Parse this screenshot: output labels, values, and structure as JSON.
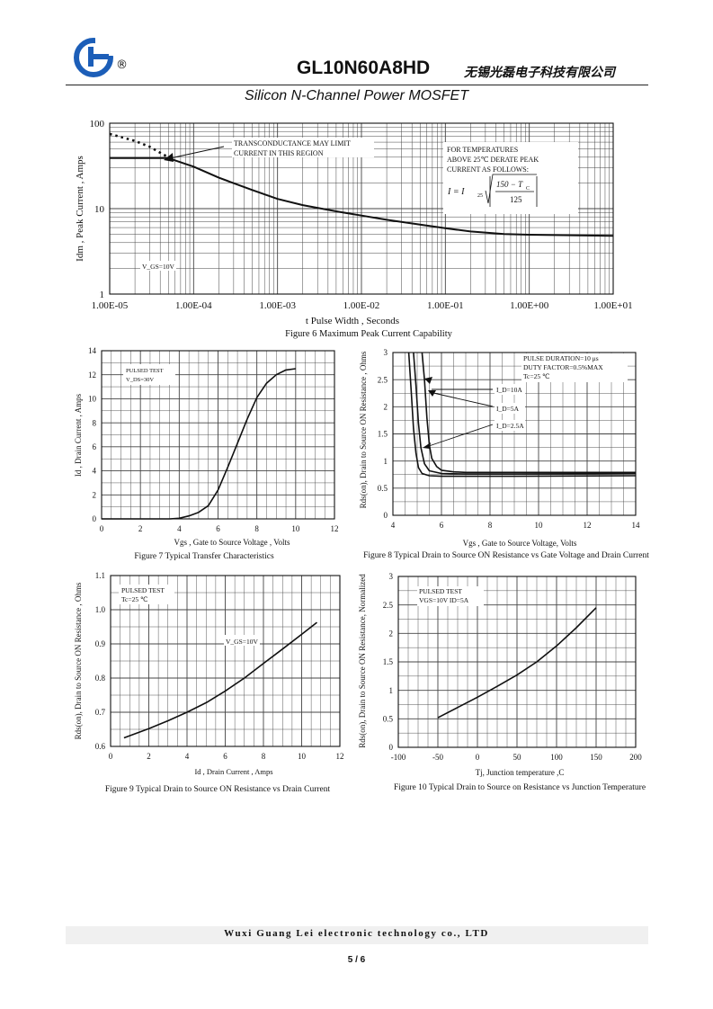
{
  "header": {
    "registered_mark": "®",
    "part_number": "GL10N60A8HD",
    "company_cn": "无锡光磊电子科技有限公司",
    "subtitle": "Silicon N-Channel Power MOSFET"
  },
  "footer": {
    "company_en": "Wuxi Guang Lei electronic technology co., LTD",
    "page": "5 / 6"
  },
  "chart_data": [
    {
      "id": "fig6",
      "type": "line",
      "title": "Figure 6 Maximum Peak Current Capability",
      "xlabel": "t Pulse Width , Seconds",
      "ylabel": "Idm , Peak Current , Amps",
      "xscale": "log",
      "yscale": "log",
      "xlim": [
        1e-05,
        10
      ],
      "ylim": [
        1,
        100
      ],
      "x_ticks": [
        "1.00E-05",
        "1.00E-04",
        "1.00E-03",
        "1.00E-02",
        "1.00E-01",
        "1.00E+00",
        "1.00E+01"
      ],
      "y_ticks": [
        "1",
        "10",
        "100"
      ],
      "annotations": [
        "TRANSCONDUCTANCE MAY LIMIT",
        "CURRENT IN THIS REGION",
        "FOR TEMPERATURES",
        "ABOVE 25℃ DERATE PEAK",
        "CURRENT AS FOLLOWS:",
        "V_GS=10V"
      ],
      "formula": {
        "lhs": "I = I",
        "lhs_sub": "25",
        "num": "150 − T",
        "num_sub": "C",
        "den": "125"
      },
      "series": [
        {
          "style": "solid",
          "x": [
            1e-05,
            3e-05,
            5e-05,
            0.0001,
            0.0002,
            0.0005,
            0.001,
            0.002,
            0.005,
            0.01,
            0.02,
            0.05,
            0.1,
            0.2,
            0.5,
            1,
            2,
            5,
            10
          ],
          "y": [
            39,
            39,
            39,
            31,
            23,
            16.5,
            13,
            11,
            9.3,
            8.3,
            7.4,
            6.5,
            5.9,
            5.4,
            5.05,
            4.95,
            4.9,
            4.85,
            4.8
          ]
        },
        {
          "style": "dotted",
          "x": [
            1e-05,
            2e-05,
            3e-05,
            4e-05,
            5e-05
          ],
          "y": [
            75,
            62,
            53,
            45,
            40
          ]
        }
      ]
    },
    {
      "id": "fig7",
      "type": "line",
      "title": "Figure 7 Typical Transfer Characteristics",
      "xlabel": "Vgs , Gate to Source Voltage , Volts",
      "ylabel": "Id , Drain Current , Amps",
      "xlim": [
        0,
        12
      ],
      "ylim": [
        0,
        14
      ],
      "x_ticks": [
        "0",
        "2",
        "4",
        "6",
        "8",
        "10",
        "12"
      ],
      "y_ticks": [
        "0",
        "2",
        "4",
        "6",
        "8",
        "10",
        "12",
        "14"
      ],
      "annotations": [
        "PULSED TEST",
        "V_DS=30V"
      ],
      "series": [
        {
          "x": [
            0,
            2,
            3.5,
            4,
            4.5,
            5,
            5.5,
            6,
            6.5,
            7,
            7.5,
            8,
            8.5,
            9,
            9.5,
            10
          ],
          "y": [
            0,
            0,
            0,
            0.05,
            0.25,
            0.55,
            1.1,
            2.4,
            4.3,
            6.3,
            8.3,
            10.1,
            11.3,
            12.0,
            12.4,
            12.5
          ]
        }
      ]
    },
    {
      "id": "fig8",
      "type": "line",
      "title": "Figure 8 Typical Drain to Source ON Resistance vs Gate Voltage and Drain Current",
      "xlabel": "Vgs , Gate to Source Voltage, Volts",
      "ylabel": "Rds(on), Drain to Source ON Resistance , Ohms",
      "xlim": [
        4,
        14
      ],
      "ylim": [
        0,
        3
      ],
      "x_ticks": [
        "4",
        "6",
        "8",
        "10",
        "12",
        "14"
      ],
      "y_ticks": [
        "0",
        "0.5",
        "1",
        "1.5",
        "2",
        "2.5",
        "3"
      ],
      "annotations": [
        "PULSE DURATION=10 μs",
        "DUTY FACTOR=0.5%MAX",
        "Tc=25 ℃"
      ],
      "series": [
        {
          "name": "I_D=10A",
          "x": [
            5.2,
            5.3,
            5.4,
            5.5,
            5.6,
            5.8,
            6,
            6.5,
            7,
            9,
            14
          ],
          "y": [
            3,
            2.5,
            1.8,
            1.3,
            1.05,
            0.9,
            0.83,
            0.8,
            0.79,
            0.79,
            0.79
          ]
        },
        {
          "name": "I_D=5A",
          "x": [
            4.85,
            4.95,
            5.05,
            5.15,
            5.3,
            5.5,
            6,
            7,
            9,
            14
          ],
          "y": [
            3,
            2.4,
            1.7,
            1.25,
            0.95,
            0.82,
            0.77,
            0.76,
            0.76,
            0.77
          ]
        },
        {
          "name": "I_D=2.5A",
          "x": [
            4.65,
            4.75,
            4.85,
            4.95,
            5.05,
            5.2,
            5.5,
            6,
            9,
            14
          ],
          "y": [
            3,
            2.3,
            1.6,
            1.15,
            0.88,
            0.77,
            0.73,
            0.72,
            0.72,
            0.73
          ]
        }
      ]
    },
    {
      "id": "fig9",
      "type": "line",
      "title": "Figure 9 Typical Drain to Source ON Resistance vs Drain Current",
      "xlabel": "Id , Drain Current , Amps",
      "ylabel": "Rds(on), Drain to Source ON Resistance , Ohms",
      "xlim": [
        0,
        12
      ],
      "ylim": [
        0.6,
        1.1
      ],
      "x_ticks": [
        "0",
        "2",
        "4",
        "6",
        "8",
        "10",
        "12"
      ],
      "y_ticks": [
        "0.6",
        "0.7",
        "0.8",
        "0.9",
        "1.0",
        "1.1"
      ],
      "annotations": [
        "PULSED TEST",
        "Tc=25 ℃",
        "V_GS=10V"
      ],
      "series": [
        {
          "x": [
            0.7,
            2,
            3,
            4,
            5,
            6,
            7,
            8,
            9,
            10,
            10.8
          ],
          "y": [
            0.625,
            0.652,
            0.675,
            0.7,
            0.728,
            0.762,
            0.8,
            0.843,
            0.885,
            0.928,
            0.963
          ]
        }
      ]
    },
    {
      "id": "fig10",
      "type": "line",
      "title": "Figure 10 Typical Drain to Source on Resistance vs Junction Temperature",
      "xlabel": "Tj, Junction temperature ,C",
      "ylabel": "Rds(on), Drain to Source ON Resistance, Normalized",
      "xlim": [
        -100,
        200
      ],
      "ylim": [
        0,
        3
      ],
      "x_ticks": [
        "-100",
        "-50",
        "0",
        "50",
        "100",
        "150",
        "200"
      ],
      "y_ticks": [
        "0",
        "0.5",
        "1",
        "1.5",
        "2",
        "2.5",
        "3"
      ],
      "annotations": [
        "PULSED TEST",
        "VGS=10V ID=5A"
      ],
      "series": [
        {
          "x": [
            -50,
            -25,
            0,
            25,
            50,
            75,
            100,
            125,
            150
          ],
          "y": [
            0.52,
            0.7,
            0.88,
            1.07,
            1.27,
            1.5,
            1.78,
            2.1,
            2.45
          ]
        }
      ]
    }
  ]
}
